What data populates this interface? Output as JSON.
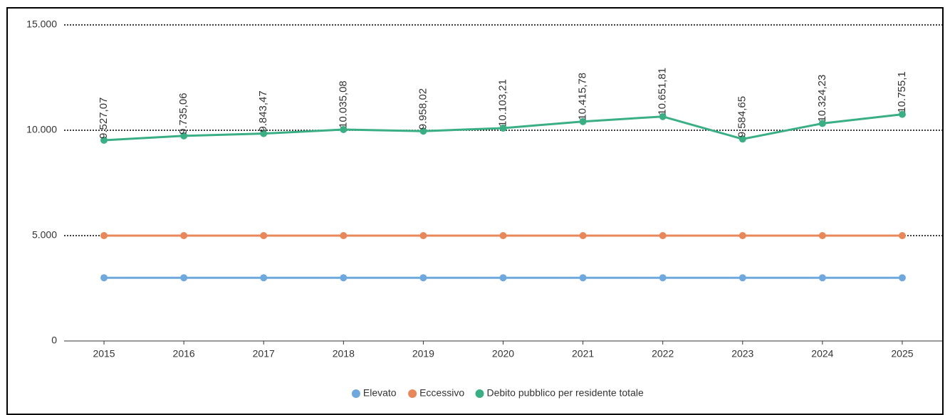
{
  "chart_data": {
    "type": "line",
    "categories": [
      "2015",
      "2016",
      "2017",
      "2018",
      "2019",
      "2020",
      "2021",
      "2022",
      "2023",
      "2024",
      "2025"
    ],
    "series": [
      {
        "name": "Elevato",
        "color": "#6fa8dc",
        "values": [
          3000,
          3000,
          3000,
          3000,
          3000,
          3000,
          3000,
          3000,
          3000,
          3000,
          3000
        ]
      },
      {
        "name": "Eccessivo",
        "color": "#e8875a",
        "values": [
          5000,
          5000,
          5000,
          5000,
          5000,
          5000,
          5000,
          5000,
          5000,
          5000,
          5000
        ]
      },
      {
        "name": "Debito pubblico per residente totale",
        "color": "#3aaf85",
        "values": [
          9527.07,
          9735.06,
          9843.47,
          10035.08,
          9958.02,
          10103.21,
          10415.78,
          10651.81,
          9584.65,
          10324.23,
          10755.1
        ],
        "value_labels": [
          "9.527,07",
          "9.735,06",
          "9.843,47",
          "10.035,08",
          "9.958,02",
          "10.103,21",
          "10.415,78",
          "10.651,81",
          "9.584,65",
          "10.324,23",
          "10.755,1"
        ]
      }
    ],
    "ylim": [
      0,
      15000
    ],
    "yticks": [
      0,
      {
        "value": 5000,
        "label": "5.000"
      },
      {
        "value": 10000,
        "label": "10.000"
      },
      {
        "value": 15000,
        "label": "15.000"
      }
    ],
    "grid": true,
    "legend": "bottom"
  }
}
